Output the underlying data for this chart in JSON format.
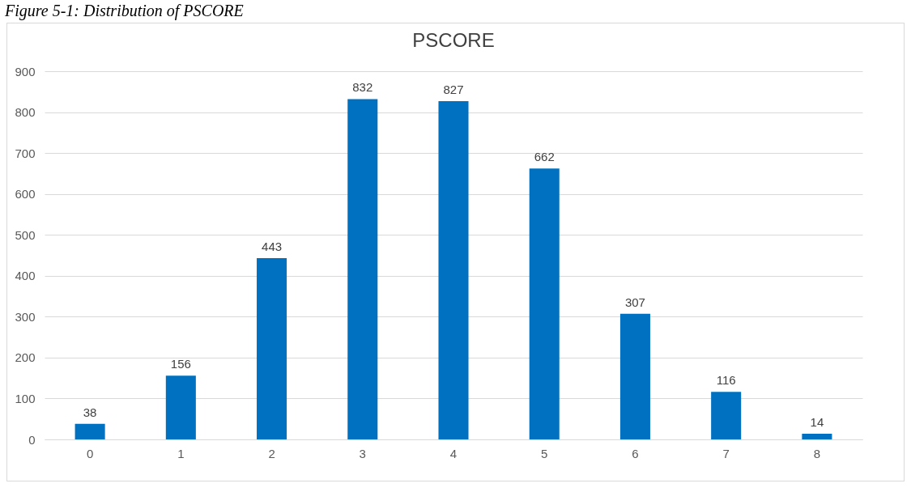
{
  "chart_data": {
    "type": "bar",
    "title": "PSCORE",
    "annotations": [
      "Figure 5-1: Distribution of PSCORE"
    ],
    "categories": [
      "0",
      "1",
      "2",
      "3",
      "4",
      "5",
      "6",
      "7",
      "8"
    ],
    "values": [
      38,
      156,
      443,
      832,
      827,
      662,
      307,
      116,
      14
    ],
    "color": "#0070c0",
    "ylim": [
      0,
      900
    ],
    "yticks": [
      0,
      100,
      200,
      300,
      400,
      500,
      600,
      700,
      800,
      900
    ],
    "grid": "y",
    "data_labels": true
  }
}
